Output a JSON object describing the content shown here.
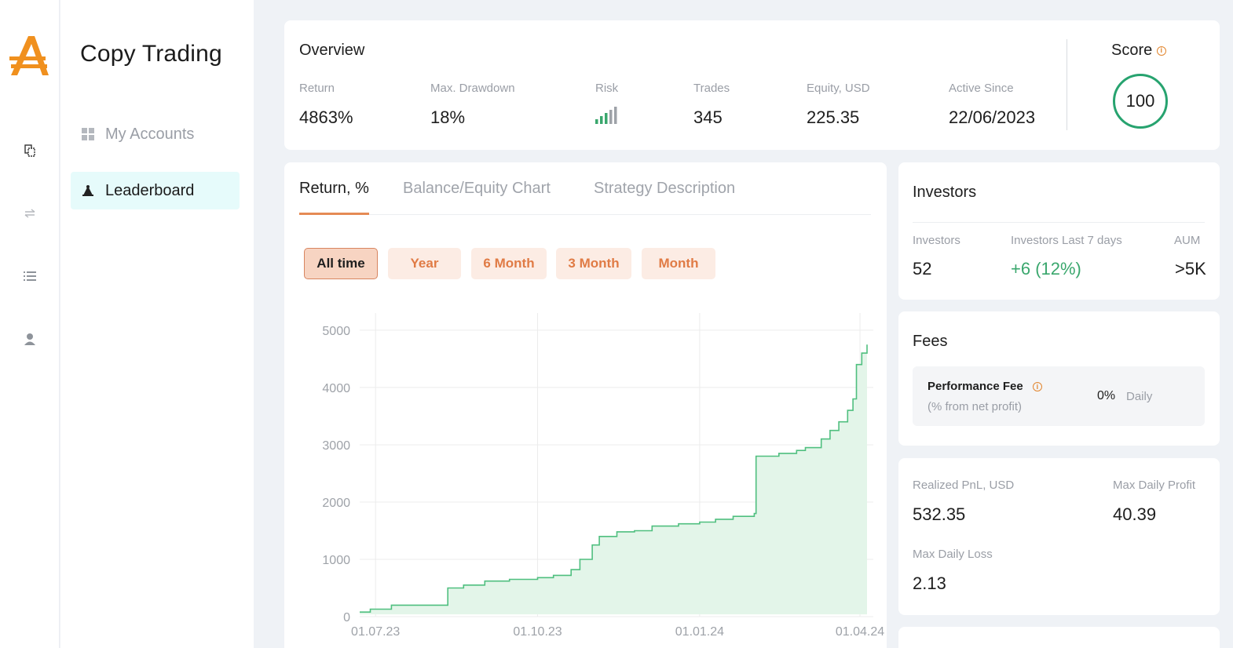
{
  "colors": {
    "accent": "#e58b55",
    "positive": "#3aa76d",
    "chart_line": "#4fbf7f",
    "chart_fill": "#e3f5e9",
    "score_ring": "#27a36f"
  },
  "app": {
    "title": "Copy Trading"
  },
  "rail": {
    "icons": [
      "copy-icon",
      "transfer-icon",
      "list-icon",
      "user-icon"
    ]
  },
  "nav": {
    "my_accounts": "My Accounts",
    "leaderboard": "Leaderboard"
  },
  "overview": {
    "title": "Overview",
    "return_label": "Return",
    "return_value": "4863%",
    "drawdown_label": "Max. Drawdown",
    "drawdown_value": "18%",
    "risk_label": "Risk",
    "risk_level": 3,
    "risk_max": 5,
    "trades_label": "Trades",
    "trades_value": "345",
    "equity_label": "Equity, USD",
    "equity_value": "225.35",
    "active_label": "Active Since",
    "active_value": "22/06/2023"
  },
  "score": {
    "label": "Score",
    "value": "100"
  },
  "tabs": [
    {
      "label": "Return, %"
    },
    {
      "label": "Balance/Equity Chart"
    },
    {
      "label": "Strategy Description"
    }
  ],
  "periods": [
    "All time",
    "Year",
    "6 Month",
    "3 Month",
    "Month"
  ],
  "investors": {
    "title": "Investors",
    "investors_label": "Investors",
    "investors_value": "52",
    "last7_label": "Investors Last 7 days",
    "last7_value": "+6 (12%)",
    "aum_label": "AUM",
    "aum_value": ">5K"
  },
  "fees": {
    "title": "Fees",
    "perf_label": "Performance Fee",
    "perf_sub": "(% from net profit)",
    "perf_value": "0%",
    "perf_period": "Daily"
  },
  "pnl": {
    "realized_label": "Realized PnL, USD",
    "realized_value": "532.35",
    "max_profit_label": "Max Daily Profit",
    "max_profit_value": "40.39",
    "max_loss_label": "Max Daily Loss",
    "max_loss_value": "2.13"
  },
  "chart_data": {
    "type": "area",
    "ylim": [
      0,
      5300
    ],
    "y_ticks": [
      "0",
      "1000",
      "2000",
      "3000",
      "4000",
      "5000"
    ],
    "y_tick_values": [
      0,
      1000,
      2000,
      3000,
      4000,
      5000
    ],
    "x_ticks": [
      "01.07.23",
      "01.10.23",
      "01.01.24",
      "01.04.24"
    ],
    "x_tick_dates": [
      "2023-07-01",
      "2023-10-01",
      "2024-01-01",
      "2024-04-01"
    ],
    "grid": true,
    "series": [
      {
        "x": [
          "2023-06-22",
          "2023-06-28",
          "2023-07-10",
          "2023-08-10",
          "2023-08-11",
          "2023-08-20",
          "2023-09-01",
          "2023-09-15",
          "2023-10-01",
          "2023-10-10",
          "2023-10-20",
          "2023-10-25",
          "2023-11-01",
          "2023-11-05",
          "2023-11-15",
          "2023-11-25",
          "2023-12-05",
          "2023-12-20",
          "2024-01-01",
          "2024-01-10",
          "2024-01-20",
          "2024-02-01",
          "2024-02-02",
          "2024-02-15",
          "2024-02-25",
          "2024-03-01",
          "2024-03-10",
          "2024-03-15",
          "2024-03-20",
          "2024-03-25",
          "2024-03-28",
          "2024-03-30",
          "2024-04-02",
          "2024-04-05"
        ],
        "y": [
          80,
          130,
          200,
          200,
          500,
          550,
          620,
          650,
          680,
          720,
          820,
          1000,
          1250,
          1400,
          1480,
          1500,
          1580,
          1620,
          1650,
          1700,
          1750,
          1800,
          2800,
          2850,
          2900,
          2950,
          3100,
          3250,
          3400,
          3600,
          3800,
          4400,
          4600,
          4750
        ]
      }
    ]
  }
}
